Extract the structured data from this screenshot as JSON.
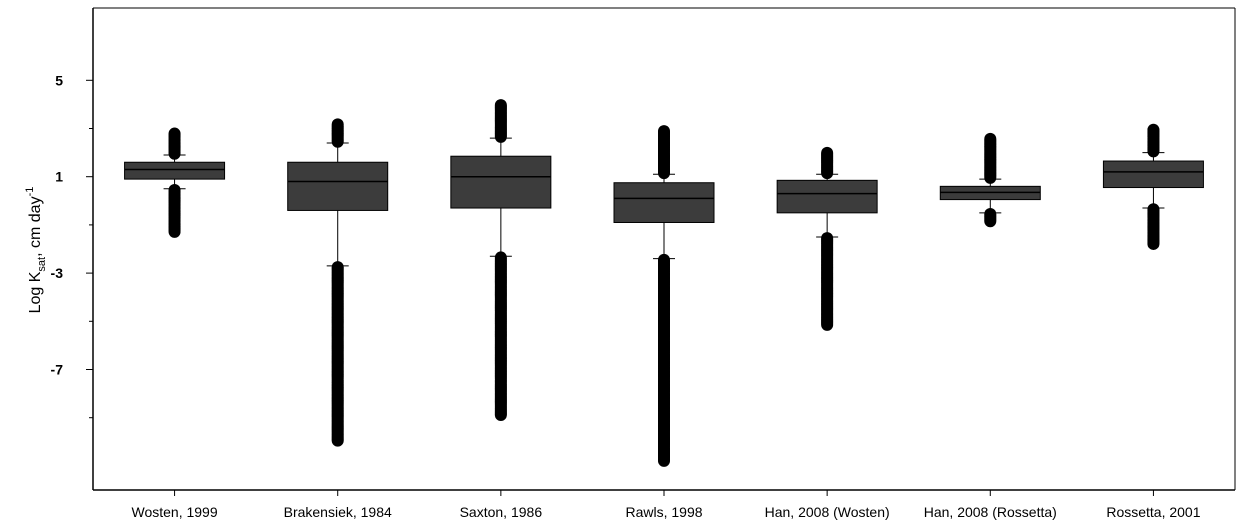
{
  "chart_data": {
    "type": "box",
    "title": "",
    "xlabel": "",
    "ylabel": {
      "main": "Log K",
      "subscript": "sat",
      "rest": ", cm day",
      "superscript": "-1"
    },
    "ylim": [
      -12,
      8
    ],
    "yticks": [
      5,
      1,
      -3,
      -7
    ],
    "ytick_labels": [
      "5",
      "1",
      "-3",
      "-7"
    ],
    "minor_yticks": [
      3,
      -1,
      -5,
      -9
    ],
    "grid": false,
    "legend": "none",
    "colors": {
      "box": "#3c3c3c",
      "line": "#000000",
      "outlier": "#000000"
    },
    "categories": [
      "Wosten, 1999",
      "Brakensiek, 1984",
      "Saxton, 1986",
      "Rawls, 1998",
      "Han, 2008 (Wosten)",
      "Han, 2008 (Rossetta)",
      "Rossetta, 2001"
    ],
    "boxes": [
      {
        "q1": 0.9,
        "median": 1.3,
        "q3": 1.6,
        "whisker_low": 0.5,
        "whisker_high": 1.9
      },
      {
        "q1": -0.4,
        "median": 0.8,
        "q3": 1.6,
        "whisker_low": -2.7,
        "whisker_high": 2.4
      },
      {
        "q1": -0.3,
        "median": 1.0,
        "q3": 1.85,
        "whisker_low": -2.3,
        "whisker_high": 2.6
      },
      {
        "q1": -0.9,
        "median": 0.1,
        "q3": 0.75,
        "whisker_low": -2.4,
        "whisker_high": 1.1
      },
      {
        "q1": -0.5,
        "median": 0.3,
        "q3": 0.85,
        "whisker_low": -1.5,
        "whisker_high": 1.1
      },
      {
        "q1": 0.05,
        "median": 0.35,
        "q3": 0.6,
        "whisker_low": -0.5,
        "whisker_high": 0.9
      },
      {
        "q1": 0.55,
        "median": 1.2,
        "q3": 1.65,
        "whisker_low": -0.3,
        "whisker_high": 2.0
      }
    ],
    "outlier_ranges": [
      {
        "low": [
          -1.3,
          0.5
        ],
        "high": [
          1.9,
          2.8
        ]
      },
      {
        "low": [
          -10.0,
          -2.7
        ],
        "high": [
          2.4,
          3.2
        ]
      },
      {
        "low": [
          -8.9,
          -2.3
        ],
        "high": [
          2.6,
          4.0
        ]
      },
      {
        "low": [
          -10.8,
          -2.4
        ],
        "high": [
          1.1,
          2.9
        ]
      },
      {
        "low": [
          -5.2,
          -1.5
        ],
        "high": [
          1.1,
          2.0
        ]
      },
      {
        "low": [
          -0.9,
          -0.5
        ],
        "high": [
          0.9,
          2.6
        ]
      },
      {
        "low": [
          -1.8,
          -0.3
        ],
        "high": [
          2.0,
          3.0
        ]
      }
    ]
  }
}
